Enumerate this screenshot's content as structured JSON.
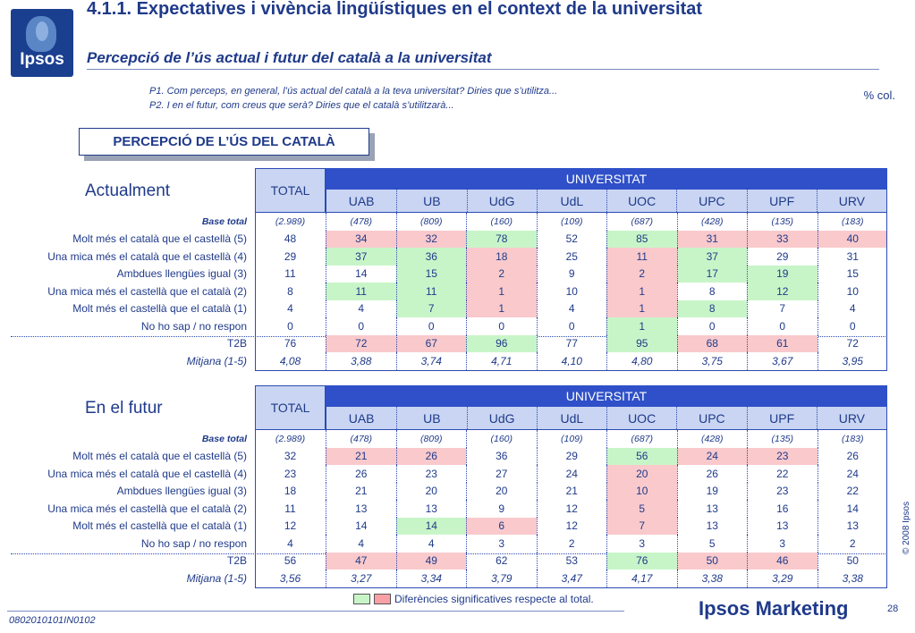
{
  "header": {
    "logo_text": "Ipsos",
    "title": "4.1.1. Expectatives i vivència lingüístiques en el context de la universitat",
    "subtitle": "Percepció de l’ús actual i futur del català a la universitat"
  },
  "questions": {
    "p1": "P1. Com perceps, en general, l’ús actual del català a la teva universitat? Diries que s’utilitza...",
    "p2": "P2. I en el futur, com creus que serà? Diries que el català s’utilitzarà...",
    "unit": "% col."
  },
  "box_title": "PERCEPCIÓ DE L’ÚS DEL CATALÀ",
  "columns": {
    "total": "TOTAL",
    "group": "UNIVERSITAT",
    "universities": [
      "UAB",
      "UB",
      "UdG",
      "UdL",
      "UOC",
      "UPC",
      "UPF",
      "URV"
    ]
  },
  "tables": [
    {
      "title": "Actualment",
      "rows": [
        {
          "label": "Base total",
          "kind": "base",
          "values": [
            "(2.989)",
            "(478)",
            "(809)",
            "(160)",
            "(109)",
            "(687)",
            "(428)",
            "(135)",
            "(183)"
          ],
          "marks": [
            "",
            "",
            "",
            "",
            "",
            "",
            "",
            "",
            ""
          ]
        },
        {
          "label": "Molt més el català que el castellà (5)",
          "kind": "data",
          "values": [
            "48",
            "34",
            "32",
            "78",
            "52",
            "85",
            "31",
            "33",
            "40"
          ],
          "marks": [
            "",
            "red",
            "red",
            "green",
            "",
            "green",
            "red",
            "red",
            "red"
          ]
        },
        {
          "label": "Una mica més el català que el castellà (4)",
          "kind": "data",
          "values": [
            "29",
            "37",
            "36",
            "18",
            "25",
            "11",
            "37",
            "29",
            "31"
          ],
          "marks": [
            "",
            "green",
            "green",
            "red",
            "",
            "red",
            "green",
            "",
            ""
          ]
        },
        {
          "label": "Ambdues llengües igual (3)",
          "kind": "data",
          "values": [
            "11",
            "14",
            "15",
            "2",
            "9",
            "2",
            "17",
            "19",
            "15"
          ],
          "marks": [
            "",
            "",
            "green",
            "red",
            "",
            "red",
            "green",
            "green",
            ""
          ]
        },
        {
          "label": "Una mica més el castellà que el català (2)",
          "kind": "data",
          "values": [
            "8",
            "11",
            "11",
            "1",
            "10",
            "1",
            "8",
            "12",
            "10"
          ],
          "marks": [
            "",
            "green",
            "green",
            "red",
            "",
            "red",
            "",
            "green",
            ""
          ]
        },
        {
          "label": "Molt més el castellà que el català (1)",
          "kind": "data",
          "values": [
            "4",
            "4",
            "7",
            "1",
            "4",
            "1",
            "8",
            "7",
            "4"
          ],
          "marks": [
            "",
            "",
            "green",
            "red",
            "",
            "red",
            "green",
            "",
            ""
          ]
        },
        {
          "label": "No ho sap / no respon",
          "kind": "data",
          "values": [
            "0",
            "0",
            "0",
            "0",
            "0",
            "1",
            "0",
            "0",
            "0"
          ],
          "marks": [
            "",
            "",
            "",
            "",
            "",
            "green",
            "",
            "",
            ""
          ]
        },
        {
          "label": "T2B",
          "kind": "t2b",
          "values": [
            "76",
            "72",
            "67",
            "96",
            "77",
            "95",
            "68",
            "61",
            "72"
          ],
          "marks": [
            "",
            "red",
            "red",
            "green",
            "",
            "green",
            "red",
            "red",
            ""
          ]
        },
        {
          "label": "Mitjana (1-5)",
          "kind": "mean",
          "values": [
            "4,08",
            "3,88",
            "3,74",
            "4,71",
            "4,10",
            "4,80",
            "3,75",
            "3,67",
            "3,95"
          ],
          "marks": [
            "",
            "",
            "",
            "",
            "",
            "",
            "",
            "",
            ""
          ]
        }
      ]
    },
    {
      "title": "En el futur",
      "rows": [
        {
          "label": "Base total",
          "kind": "base",
          "values": [
            "(2.989)",
            "(478)",
            "(809)",
            "(160)",
            "(109)",
            "(687)",
            "(428)",
            "(135)",
            "(183)"
          ],
          "marks": [
            "",
            "",
            "",
            "",
            "",
            "",
            "",
            "",
            ""
          ]
        },
        {
          "label": "Molt més el català que el castellà (5)",
          "kind": "data",
          "values": [
            "32",
            "21",
            "26",
            "36",
            "29",
            "56",
            "24",
            "23",
            "26"
          ],
          "marks": [
            "",
            "red",
            "red",
            "",
            "",
            "green",
            "red",
            "red",
            ""
          ]
        },
        {
          "label": "Una mica més el català que el castellà (4)",
          "kind": "data",
          "values": [
            "23",
            "26",
            "23",
            "27",
            "24",
            "20",
            "26",
            "22",
            "24"
          ],
          "marks": [
            "",
            "",
            "",
            "",
            "",
            "red",
            "",
            "",
            ""
          ]
        },
        {
          "label": "Ambdues llengües igual (3)",
          "kind": "data",
          "values": [
            "18",
            "21",
            "20",
            "20",
            "21",
            "10",
            "19",
            "23",
            "22"
          ],
          "marks": [
            "",
            "",
            "",
            "",
            "",
            "red",
            "",
            "",
            ""
          ]
        },
        {
          "label": "Una mica més el castellà que el català (2)",
          "kind": "data",
          "values": [
            "11",
            "13",
            "13",
            "9",
            "12",
            "5",
            "13",
            "16",
            "14"
          ],
          "marks": [
            "",
            "",
            "",
            "",
            "",
            "red",
            "",
            "",
            ""
          ]
        },
        {
          "label": "Molt més el castellà que el català (1)",
          "kind": "data",
          "values": [
            "12",
            "14",
            "14",
            "6",
            "12",
            "7",
            "13",
            "13",
            "13"
          ],
          "marks": [
            "",
            "",
            "green",
            "red",
            "",
            "red",
            "",
            "",
            ""
          ]
        },
        {
          "label": "No ho sap / no respon",
          "kind": "data",
          "values": [
            "4",
            "4",
            "4",
            "3",
            "2",
            "3",
            "5",
            "3",
            "2"
          ],
          "marks": [
            "",
            "",
            "",
            "",
            "",
            "",
            "",
            "",
            ""
          ]
        },
        {
          "label": "T2B",
          "kind": "t2b",
          "values": [
            "56",
            "47",
            "49",
            "62",
            "53",
            "76",
            "50",
            "46",
            "50"
          ],
          "marks": [
            "",
            "red",
            "red",
            "",
            "",
            "green",
            "red",
            "red",
            ""
          ]
        },
        {
          "label": "Mitjana (1-5)",
          "kind": "mean",
          "values": [
            "3,56",
            "3,27",
            "3,34",
            "3,79",
            "3,47",
            "4,17",
            "3,38",
            "3,29",
            "3,38"
          ],
          "marks": [
            "",
            "",
            "",
            "",
            "",
            "",
            "",
            "",
            ""
          ]
        }
      ]
    }
  ],
  "legend": "Diferències significatives respecte al total.",
  "footer": {
    "brand": "Ipsos Marketing",
    "page": "28",
    "copyright": "© 2008 Ipsos",
    "code": "0802010101IN0102"
  },
  "colors": {
    "brand_blue": "#1f3a8a",
    "header_blue": "#2f50c8",
    "significant_higher": "#c8f5c8",
    "significant_lower": "#f9c9cc"
  }
}
